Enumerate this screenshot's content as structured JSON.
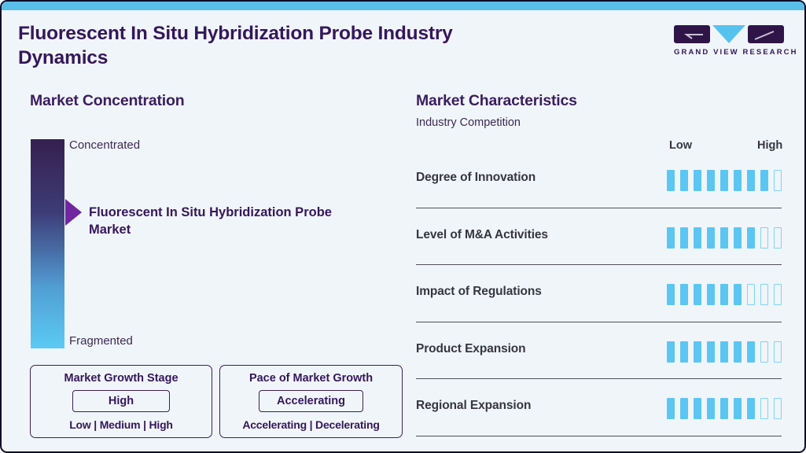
{
  "page": {
    "title": "Fluorescent In Situ Hybridization Probe Industry Dynamics",
    "brand": "GRAND VIEW RESEARCH"
  },
  "colors": {
    "page_bg": "#F0F5FA",
    "frame": "#0D0D28",
    "accent_blue_strip": "#59BFE9",
    "accent_blue": "#5BC6F2",
    "deep_purple": "#35175A",
    "heading_purple": "#3B1E5E",
    "arrow_purple": "#7126A0",
    "row_text": "#36363F"
  },
  "market_concentration": {
    "heading": "Market Concentration",
    "top_label": "Concentrated",
    "bottom_label": "Fragmented",
    "pointer_label": "Fluorescent In Situ Hybridization Probe Market",
    "pointer_position_pct_from_top": 35,
    "growth_stage": {
      "title": "Market Growth Stage",
      "value": "High",
      "scale": "Low | Medium | High"
    },
    "growth_pace": {
      "title": "Pace of Market Growth",
      "value": "Accelerating",
      "scale": "Accelerating | Decelerating"
    }
  },
  "market_characteristics": {
    "heading": "Market Characteristics",
    "subheading": "Industry Competition",
    "scale_low": "Low",
    "scale_high": "High",
    "total_ticks": 9,
    "rows": [
      {
        "label": "Degree of Innovation",
        "filled": 8
      },
      {
        "label": "Level of M&A Activities",
        "filled": 7
      },
      {
        "label": "Impact of Regulations",
        "filled": 6
      },
      {
        "label": "Product Expansion",
        "filled": 7
      },
      {
        "label": "Regional Expansion",
        "filled": 7
      }
    ]
  },
  "chart_data": {
    "type": "bar",
    "title": "Market Characteristics — Industry Competition",
    "categories": [
      "Degree of Innovation",
      "Level of M&A Activities",
      "Impact of Regulations",
      "Product Expansion",
      "Regional Expansion"
    ],
    "values": [
      8,
      7,
      6,
      7,
      7
    ],
    "scale": {
      "min_label": "Low",
      "max_label": "High",
      "max_ticks": 9
    },
    "legend_position": "none",
    "notes": "Each row shows filled tick segments out of 9 between Low and High"
  }
}
